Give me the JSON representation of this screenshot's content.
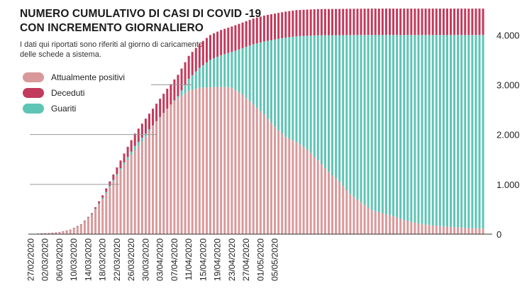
{
  "title_line1": "NUMERO CUMULATIVO DI CASI DI COVID -19",
  "title_line2": "CON INCREMENTO GIORNALIERO",
  "subtitle_line1": "I dati qui riportati sono riferiti al giorno di caricamento",
  "subtitle_line2": "delle schede a sistema.",
  "legend": [
    {
      "label": "Attualmente positivi",
      "color": "#d9999b"
    },
    {
      "label": "Deceduti",
      "color": "#c23a5c"
    },
    {
      "label": "Guariti",
      "color": "#5ec4b4"
    }
  ],
  "chart_data": {
    "type": "bar",
    "stacked": true,
    "ylim": [
      0,
      4500
    ],
    "y_ticks": [
      0,
      1000,
      2000,
      3000,
      4000
    ],
    "y_tick_labels": [
      "0",
      "1.000",
      "2.000",
      "3.000",
      "4.000"
    ],
    "y_axis_position": "right",
    "x_tick_labels": [
      "27/02/2020",
      "02/03/2020",
      "06/03/2020",
      "10/03/2020",
      "14/03/2020",
      "18/03/2020",
      "22/03/2020",
      "26/03/2020",
      "30/03/2020",
      "03/04/2020",
      "07/04/2020",
      "11/04/2020",
      "15/04/2020",
      "19/04/2020",
      "23/04/2020",
      "27/04/2020",
      "01/05/2020",
      "05/05/2020"
    ],
    "x_tick_every_days": 4,
    "grid": false,
    "legend_placement": "top-left",
    "series_order": [
      "Attualmente positivi",
      "Guariti",
      "Deceduti"
    ],
    "keyframes": {
      "total": [
        [
          0,
          0
        ],
        [
          2,
          10
        ],
        [
          5,
          20
        ],
        [
          8,
          40
        ],
        [
          11,
          90
        ],
        [
          14,
          200
        ],
        [
          17,
          420
        ],
        [
          20,
          780
        ],
        [
          23,
          1200
        ],
        [
          26,
          1620
        ],
        [
          29,
          2020
        ],
        [
          32,
          2320
        ],
        [
          35,
          2620
        ],
        [
          38,
          2920
        ],
        [
          41,
          3200
        ],
        [
          44,
          3580
        ],
        [
          47,
          3820
        ],
        [
          50,
          4000
        ],
        [
          53,
          4100
        ],
        [
          56,
          4170
        ],
        [
          59,
          4250
        ],
        [
          62,
          4330
        ],
        [
          65,
          4390
        ],
        [
          68,
          4430
        ],
        [
          71,
          4470
        ],
        [
          74,
          4500
        ],
        [
          80,
          4520
        ],
        [
          95,
          4530
        ],
        [
          105,
          4530
        ]
      ],
      "deceased": [
        [
          0,
          0
        ],
        [
          14,
          5
        ],
        [
          17,
          20
        ],
        [
          20,
          50
        ],
        [
          23,
          110
        ],
        [
          26,
          180
        ],
        [
          29,
          250
        ],
        [
          32,
          300
        ],
        [
          35,
          350
        ],
        [
          38,
          400
        ],
        [
          41,
          430
        ],
        [
          44,
          460
        ],
        [
          47,
          480
        ],
        [
          50,
          500
        ],
        [
          55,
          510
        ],
        [
          65,
          520
        ],
        [
          75,
          525
        ],
        [
          105,
          530
        ]
      ],
      "positive": [
        [
          0,
          0
        ],
        [
          2,
          10
        ],
        [
          5,
          20
        ],
        [
          8,
          40
        ],
        [
          11,
          85
        ],
        [
          14,
          190
        ],
        [
          17,
          390
        ],
        [
          20,
          710
        ],
        [
          23,
          1060
        ],
        [
          26,
          1400
        ],
        [
          29,
          1680
        ],
        [
          32,
          1950
        ],
        [
          35,
          2300
        ],
        [
          38,
          2550
        ],
        [
          41,
          2730
        ],
        [
          44,
          2880
        ],
        [
          47,
          2940
        ],
        [
          50,
          2950
        ],
        [
          53,
          2960
        ],
        [
          56,
          2940
        ],
        [
          59,
          2800
        ],
        [
          62,
          2600
        ],
        [
          65,
          2400
        ],
        [
          68,
          2150
        ],
        [
          71,
          1950
        ],
        [
          74,
          1850
        ],
        [
          77,
          1700
        ],
        [
          80,
          1480
        ],
        [
          83,
          1250
        ],
        [
          86,
          1050
        ],
        [
          89,
          800
        ],
        [
          92,
          640
        ],
        [
          95,
          480
        ],
        [
          98,
          420
        ],
        [
          101,
          360
        ],
        [
          104,
          280
        ],
        [
          107,
          230
        ],
        [
          110,
          190
        ],
        [
          114,
          160
        ],
        [
          118,
          140
        ],
        [
          122,
          120
        ],
        [
          126,
          110
        ]
      ]
    },
    "n_days": 127
  }
}
